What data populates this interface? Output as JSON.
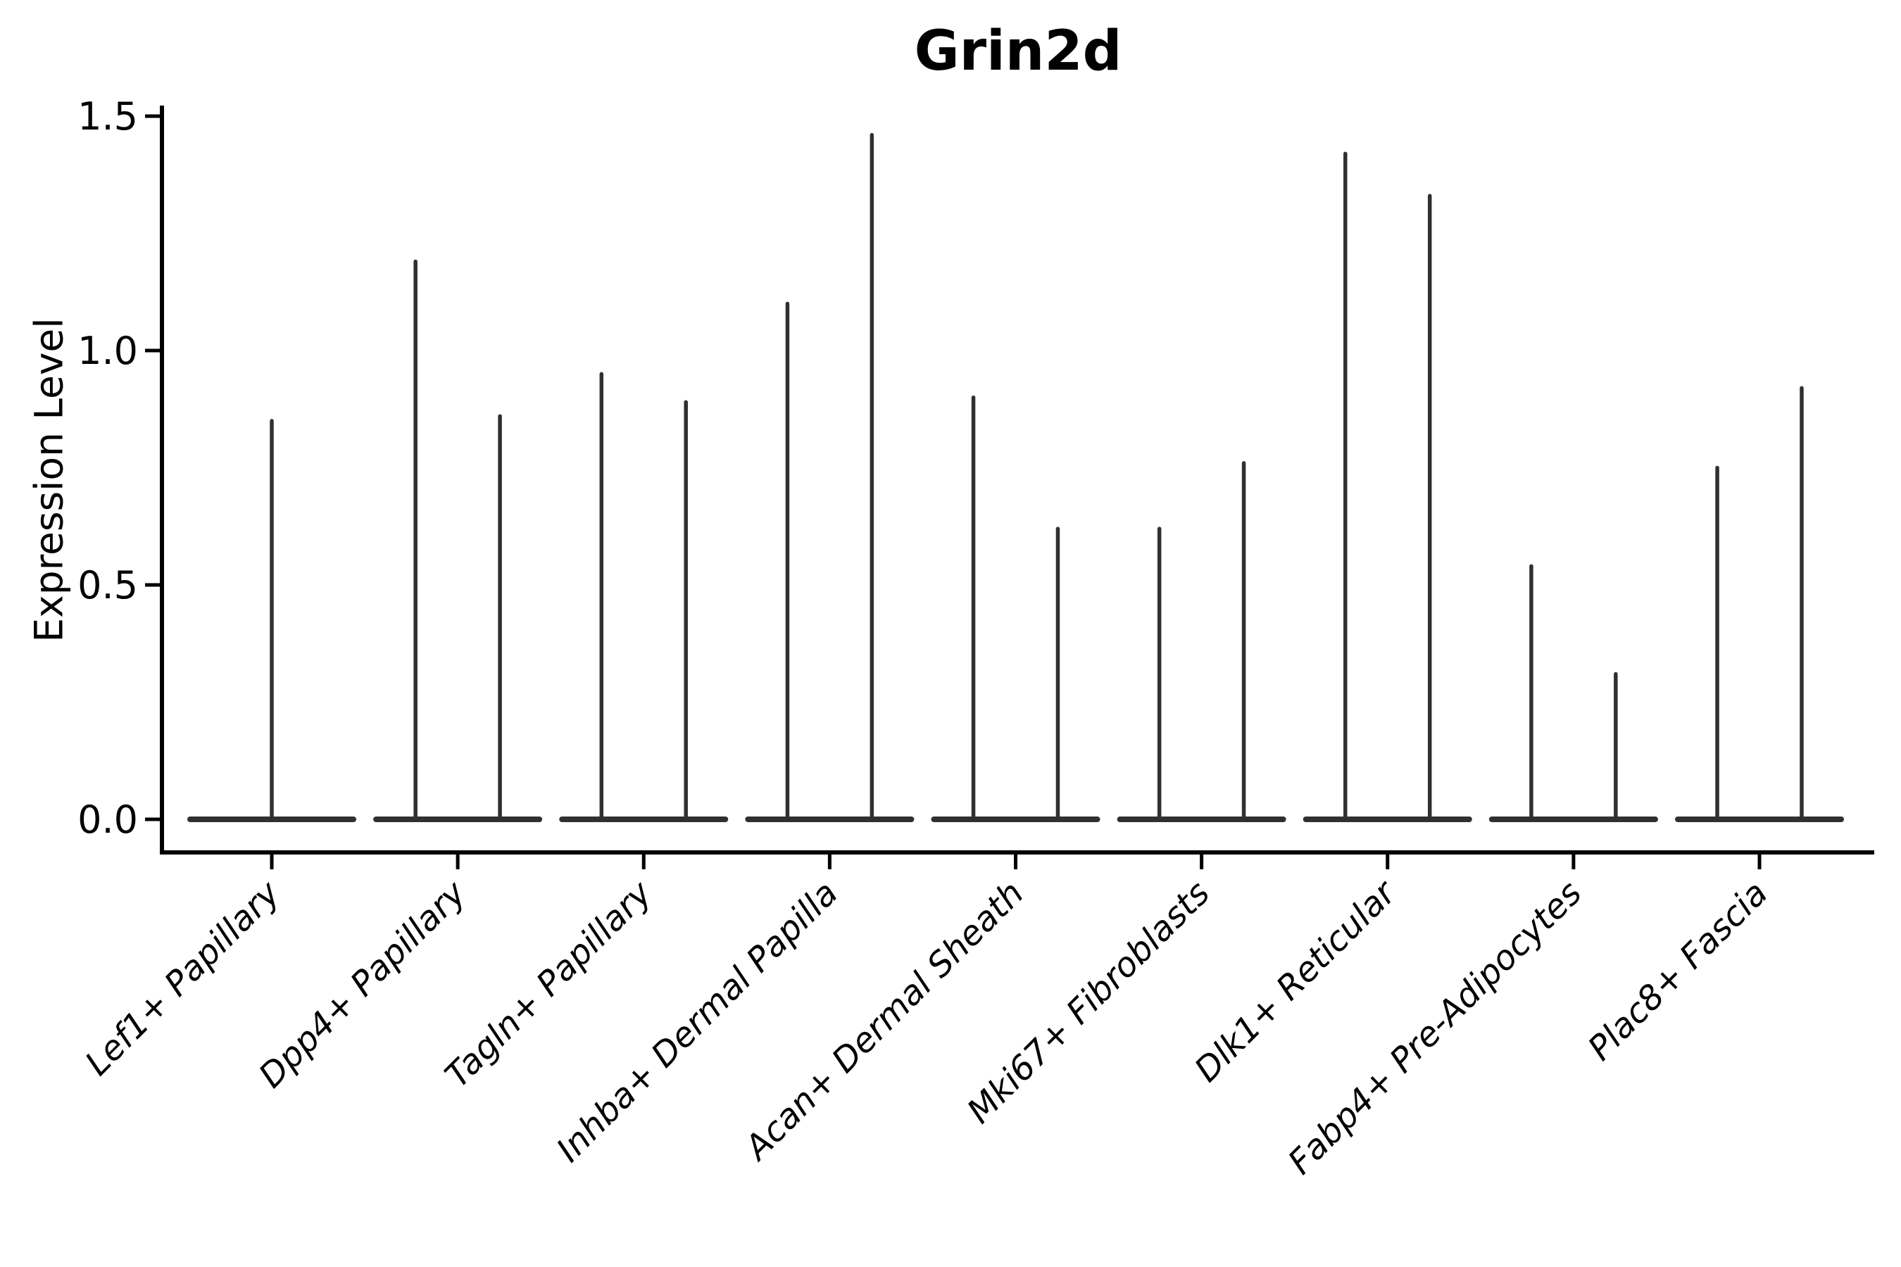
{
  "figure": {
    "background": "#ffffff"
  },
  "chart_data": {
    "type": "violin",
    "title": "Grin2d",
    "xlabel": "",
    "ylabel": "Expression Level",
    "ylim": [
      -0.07,
      1.53
    ],
    "ytick_values": [
      0.0,
      0.5,
      1.0,
      1.5
    ],
    "ytick_labels": [
      "0.0",
      "0.5",
      "1.0",
      "1.5"
    ],
    "grid": false,
    "legend": "none",
    "x_tick_rotation": 45,
    "x_tick_style": "italic",
    "baseline_value": 0.0,
    "body_width_fraction": 0.91,
    "group_offset_fraction": 0.227,
    "style": {
      "violin_color": "#303030",
      "axis_color": "#000000",
      "text_color": "#000000",
      "background": "#ffffff"
    },
    "categories": [
      {
        "label": "Lef1+ Papillary",
        "spikes": [
          {
            "offset": 0.0,
            "max": 0.85
          }
        ]
      },
      {
        "label": "Dpp4+ Papillary",
        "spikes": [
          {
            "offset": -0.227,
            "max": 1.19
          },
          {
            "offset": 0.227,
            "max": 0.86
          }
        ]
      },
      {
        "label": "Tagln+ Papillary",
        "spikes": [
          {
            "offset": -0.227,
            "max": 0.95
          },
          {
            "offset": 0.227,
            "max": 0.89
          }
        ]
      },
      {
        "label": "Inhba+ Dermal Papilla",
        "spikes": [
          {
            "offset": -0.227,
            "max": 1.1
          },
          {
            "offset": 0.227,
            "max": 1.46
          }
        ]
      },
      {
        "label": "Acan+ Dermal Sheath",
        "spikes": [
          {
            "offset": -0.227,
            "max": 0.9
          },
          {
            "offset": 0.227,
            "max": 0.62
          }
        ]
      },
      {
        "label": "Mki67+ Fibroblasts",
        "spikes": [
          {
            "offset": -0.227,
            "max": 0.62
          },
          {
            "offset": 0.227,
            "max": 0.76
          }
        ]
      },
      {
        "label": "Dlk1+ Reticular",
        "spikes": [
          {
            "offset": -0.227,
            "max": 1.42
          },
          {
            "offset": 0.227,
            "max": 1.33
          }
        ]
      },
      {
        "label": "Fabp4+ Pre-Adipocytes",
        "spikes": [
          {
            "offset": -0.227,
            "max": 0.54
          },
          {
            "offset": 0.227,
            "max": 0.31
          }
        ]
      },
      {
        "label": "Plac8+ Fascia",
        "spikes": [
          {
            "offset": -0.227,
            "max": 0.75
          },
          {
            "offset": 0.227,
            "max": 0.92
          }
        ]
      }
    ]
  }
}
